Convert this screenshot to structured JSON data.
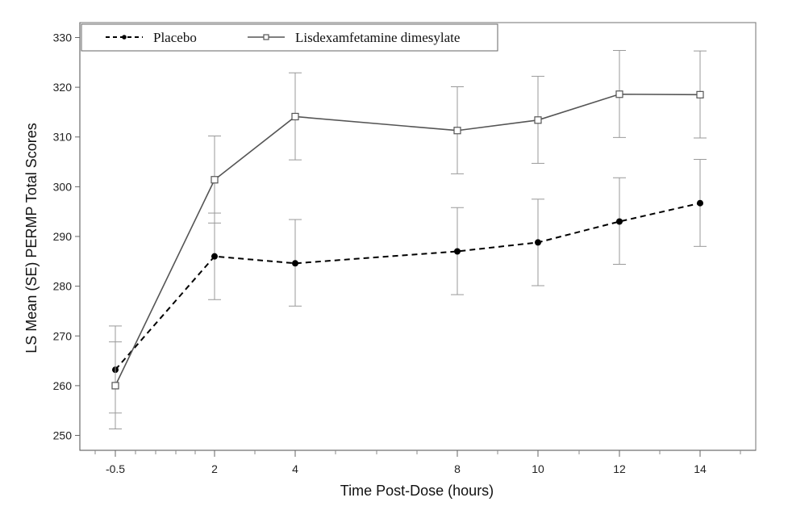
{
  "chart_data": {
    "type": "line",
    "xlabel": "Time Post-Dose (hours)",
    "ylabel": "LS Mean (SE) PERMP Total Scores",
    "x_ticks": [
      "-0.5",
      "2",
      "4",
      "8",
      "10",
      "12",
      "14"
    ],
    "y_ticks": [
      "250",
      "260",
      "270",
      "280",
      "290",
      "300",
      "310",
      "320",
      "330"
    ],
    "ylim": [
      247,
      333
    ],
    "grid": false,
    "legend_position": "top-left",
    "series": [
      {
        "name": "Placebo",
        "style": "dashed",
        "marker": "filled-circle",
        "color": "#000000",
        "points": [
          {
            "x": "-0.5",
            "y": 263.2,
            "lo": 254.5,
            "hi": 272.0
          },
          {
            "x": "2",
            "y": 286.0,
            "lo": 277.3,
            "hi": 294.7
          },
          {
            "x": "4",
            "y": 284.6,
            "lo": 276.0,
            "hi": 293.4
          },
          {
            "x": "8",
            "y": 287.0,
            "lo": 278.3,
            "hi": 295.8
          },
          {
            "x": "10",
            "y": 288.8,
            "lo": 280.1,
            "hi": 297.5
          },
          {
            "x": "12",
            "y": 293.0,
            "lo": 284.4,
            "hi": 301.8
          },
          {
            "x": "14",
            "y": 296.7,
            "lo": 288.0,
            "hi": 305.5
          }
        ]
      },
      {
        "name": "Lisdexamfetamine dimesylate",
        "style": "solid",
        "marker": "open-square",
        "color": "#555555",
        "points": [
          {
            "x": "-0.5",
            "y": 260.0,
            "lo": 251.3,
            "hi": 268.8
          },
          {
            "x": "2",
            "y": 301.4,
            "lo": 292.7,
            "hi": 310.2
          },
          {
            "x": "4",
            "y": 314.1,
            "lo": 305.4,
            "hi": 322.9
          },
          {
            "x": "8",
            "y": 311.3,
            "lo": 302.6,
            "hi": 320.1
          },
          {
            "x": "10",
            "y": 313.4,
            "lo": 304.7,
            "hi": 322.2
          },
          {
            "x": "12",
            "y": 318.6,
            "lo": 309.9,
            "hi": 327.4
          },
          {
            "x": "14",
            "y": 318.5,
            "lo": 309.8,
            "hi": 327.3
          }
        ]
      }
    ]
  }
}
